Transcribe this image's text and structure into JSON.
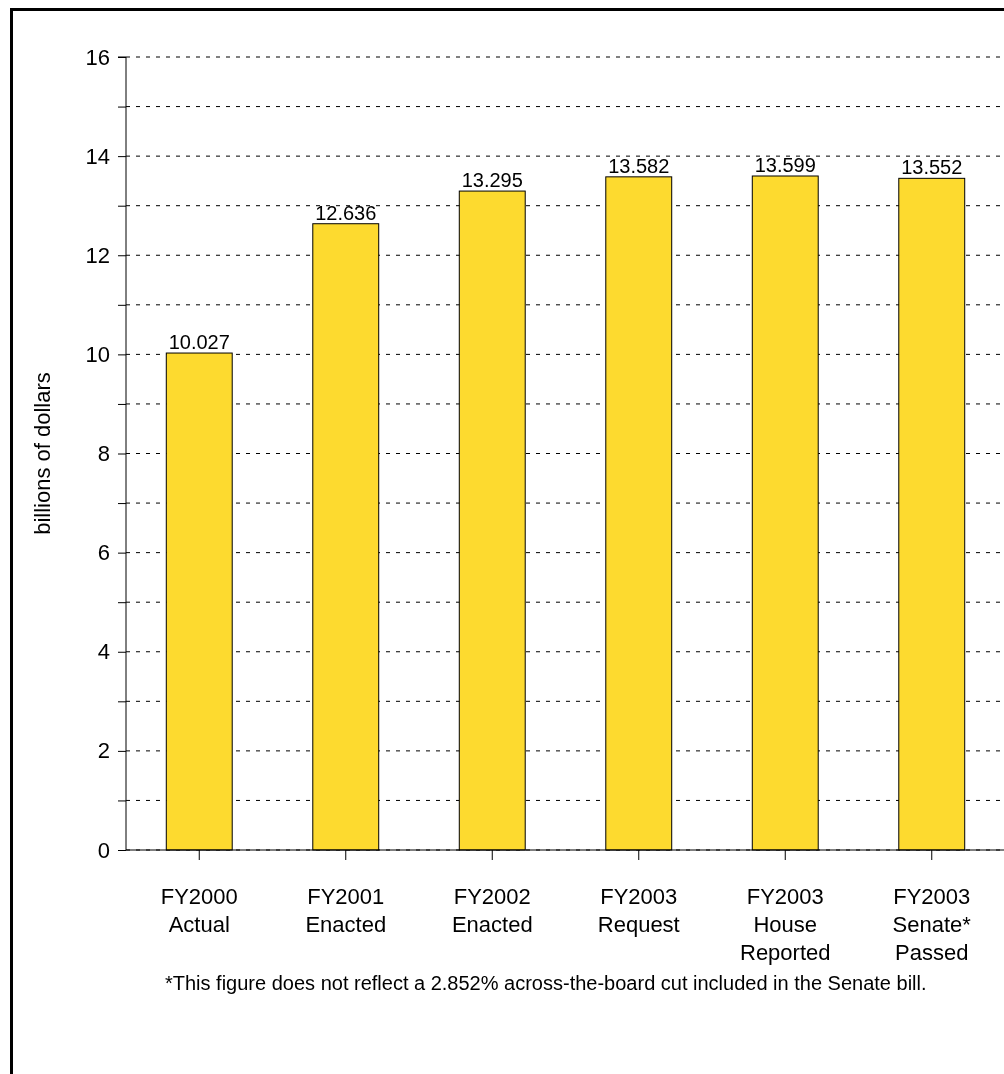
{
  "chart_data": {
    "type": "bar",
    "categories": [
      "FY2000\nActual",
      "FY2001\nEnacted",
      "FY2002\nEnacted",
      "FY2003\nRequest",
      "FY2003\nHouse\nReported",
      "FY2003\nSenate*\nPassed"
    ],
    "values": [
      10.027,
      12.636,
      13.295,
      13.582,
      13.599,
      13.552
    ],
    "color": "#fdda2f",
    "ylabel": "billions of dollars",
    "ylim": [
      0,
      16
    ],
    "yticks": [
      0,
      {
        "value": 1,
        "label": null
      },
      2,
      {
        "value": 3,
        "label": null
      },
      4,
      {
        "value": 5,
        "label": null
      },
      6,
      {
        "value": 7,
        "label": null
      },
      8,
      {
        "value": 9,
        "label": null
      },
      10,
      {
        "value": 11,
        "label": null
      },
      12,
      {
        "value": 13,
        "label": null
      },
      14,
      {
        "value": 15,
        "label": null
      },
      16
    ],
    "grid": "y",
    "data_labels": true,
    "annotations": [
      "*This figure does not reflect a 2.852% across-the-board cut included in the Senate bill."
    ]
  }
}
